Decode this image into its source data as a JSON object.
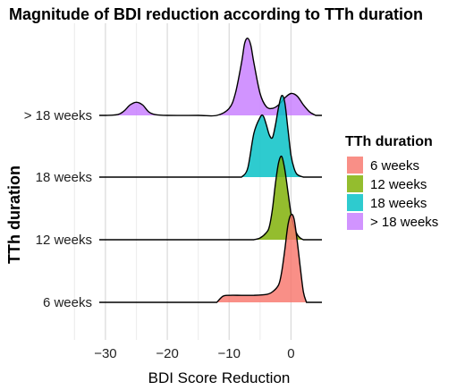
{
  "chart_data": {
    "type": "ridgeline",
    "title": "Magnitude of BDI reduction according to TTh duration",
    "xlabel": "BDI Score Reduction",
    "ylabel": "TTh duration",
    "xlim": [
      -31,
      5
    ],
    "x_ticks": [
      -30,
      -20,
      -10,
      0
    ],
    "x_tick_labels": [
      "−30",
      "−20",
      "−10",
      "0"
    ],
    "grid": "vertical major lines",
    "legend": {
      "title": "TTh duration",
      "placement": "right",
      "entries": [
        "6 weeks",
        "12 weeks",
        "18 weeks",
        "> 18 weeks"
      ]
    },
    "series": [
      {
        "name": "6 weeks",
        "color": "#F8766D",
        "x": [
          -12,
          -11,
          -10,
          -8,
          -6,
          -4,
          -3,
          -2,
          -1.5,
          -1,
          -0.5,
          0,
          0.5,
          1,
          1.5,
          2,
          2.5
        ],
        "density": [
          0,
          0.07,
          0.08,
          0.08,
          0.08,
          0.09,
          0.12,
          0.2,
          0.35,
          0.6,
          0.88,
          1.0,
          0.95,
          0.7,
          0.4,
          0.12,
          0
        ]
      },
      {
        "name": "12 weeks",
        "color": "#7CAE00",
        "x": [
          -6,
          -5,
          -4,
          -3.5,
          -3,
          -2.5,
          -2,
          -1.5,
          -1,
          -0.5,
          0,
          0.5,
          1,
          1.5,
          2
        ],
        "density": [
          0,
          0.02,
          0.08,
          0.15,
          0.35,
          0.65,
          0.88,
          0.95,
          0.8,
          0.55,
          0.3,
          0.15,
          0.06,
          0.02,
          0
        ]
      },
      {
        "name": "18 weeks",
        "color": "#00BFC4",
        "x": [
          -8,
          -7,
          -6,
          -5,
          -4.5,
          -4,
          -3.5,
          -3,
          -2.5,
          -2,
          -1.5,
          -1,
          -0.5,
          0,
          0.5,
          1,
          2
        ],
        "density": [
          0,
          0.1,
          0.5,
          0.68,
          0.7,
          0.6,
          0.48,
          0.45,
          0.6,
          0.8,
          0.93,
          0.85,
          0.55,
          0.25,
          0.1,
          0.03,
          0
        ]
      },
      {
        "name": "> 18 weeks",
        "color": "#C77CFF",
        "x": [
          -30,
          -28,
          -27,
          -26,
          -25,
          -24,
          -23,
          -22,
          -20,
          -15,
          -12,
          -10,
          -9,
          -8,
          -7.5,
          -7,
          -6.5,
          -6,
          -5,
          -4,
          -3,
          -2,
          -1,
          0,
          1,
          2,
          3,
          4
        ],
        "density": [
          0,
          0.01,
          0.05,
          0.12,
          0.15,
          0.12,
          0.04,
          0.01,
          0,
          0,
          0,
          0.08,
          0.25,
          0.6,
          0.82,
          0.88,
          0.8,
          0.6,
          0.25,
          0.1,
          0.08,
          0.12,
          0.2,
          0.25,
          0.22,
          0.12,
          0.04,
          0
        ]
      }
    ]
  }
}
